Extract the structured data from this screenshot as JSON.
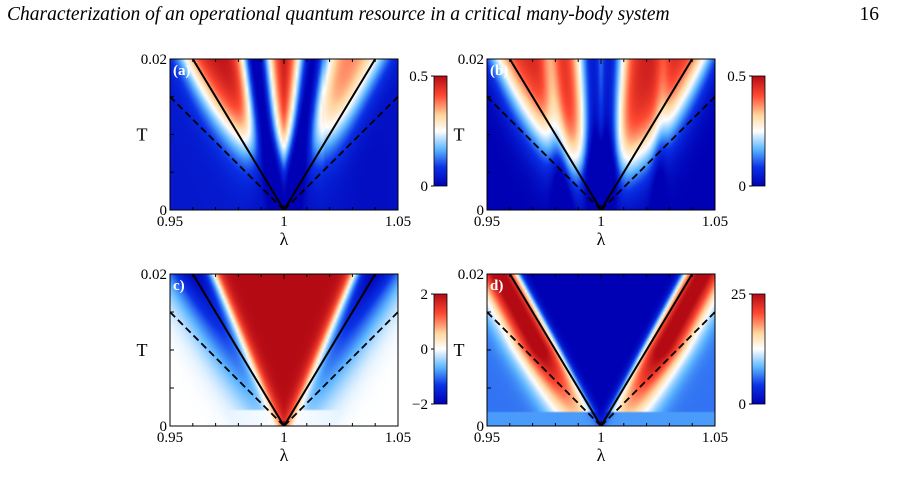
{
  "header": {
    "title": "Characterization of an operational quantum resource in a critical many-body system",
    "page_number": "16"
  },
  "colormap": {
    "stops": [
      "#0000b4",
      "#0a32e6",
      "#5ab4ff",
      "#ffffff",
      "#ffd7a0",
      "#ff4a32",
      "#b40a14"
    ]
  },
  "chart_data": [
    {
      "type": "heatmap",
      "panel": "(a)",
      "xlabel": "λ",
      "ylabel": "T",
      "x_ticks": [
        "0.95",
        "1",
        "1.05"
      ],
      "y_ticks": [
        "0",
        "0.02"
      ],
      "xlim": [
        0.95,
        1.05
      ],
      "ylim": [
        0,
        0.02
      ],
      "colorbar": {
        "ticks": [
          "0",
          "0.5"
        ],
        "range": [
          0,
          0.5
        ]
      },
      "solid_lines_slope_T_per_lambda": 0.5,
      "dashed_lines_slope_T_per_lambda": 0.3
    },
    {
      "type": "heatmap",
      "panel": "(b)",
      "xlabel": "λ",
      "ylabel": "T",
      "x_ticks": [
        "0.95",
        "1",
        "1.05"
      ],
      "y_ticks": [
        "0",
        "0.02"
      ],
      "xlim": [
        0.95,
        1.05
      ],
      "ylim": [
        0,
        0.02
      ],
      "colorbar": {
        "ticks": [
          "0",
          "0.5"
        ],
        "range": [
          0,
          0.5
        ]
      },
      "solid_lines_slope_T_per_lambda": 0.5,
      "dashed_lines_slope_T_per_lambda": 0.3
    },
    {
      "type": "heatmap",
      "panel": "c)",
      "xlabel": "λ",
      "ylabel": "T",
      "x_ticks": [
        "0.95",
        "1",
        "1.05"
      ],
      "y_ticks": [
        "0",
        "0.02"
      ],
      "xlim": [
        0.95,
        1.05
      ],
      "ylim": [
        0,
        0.02
      ],
      "colorbar": {
        "ticks": [
          "2",
          "0",
          "−2"
        ],
        "range": [
          -2,
          2
        ]
      },
      "solid_lines_slope_T_per_lambda": 0.5,
      "dashed_lines_slope_T_per_lambda": 0.3
    },
    {
      "type": "heatmap",
      "panel": "d)",
      "xlabel": "λ",
      "ylabel": "T",
      "x_ticks": [
        "0.95",
        "1",
        "1.05"
      ],
      "y_ticks": [
        "0",
        "0.02"
      ],
      "xlim": [
        0.95,
        1.05
      ],
      "ylim": [
        0,
        0.02
      ],
      "colorbar": {
        "ticks": [
          "25",
          "0"
        ],
        "range": [
          0,
          25
        ]
      },
      "solid_lines_slope_T_per_lambda": 0.5,
      "dashed_lines_slope_T_per_lambda": 0.3
    }
  ]
}
